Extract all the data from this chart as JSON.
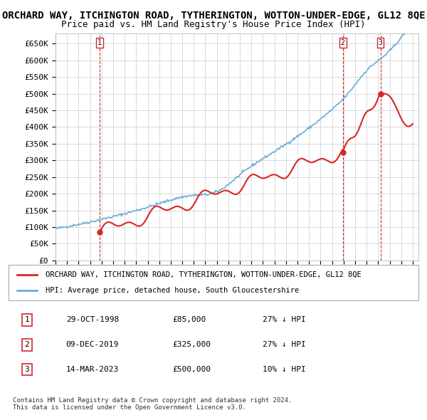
{
  "title": "ORCHARD WAY, ITCHINGTON ROAD, TYTHERINGTON, WOTTON-UNDER-EDGE, GL12 8QE",
  "subtitle": "Price paid vs. HM Land Registry's House Price Index (HPI)",
  "ylabel_ticks": [
    "£0",
    "£50K",
    "£100K",
    "£150K",
    "£200K",
    "£250K",
    "£300K",
    "£350K",
    "£400K",
    "£450K",
    "£500K",
    "£550K",
    "£600K",
    "£650K"
  ],
  "ytick_values": [
    0,
    50000,
    100000,
    150000,
    200000,
    250000,
    300000,
    350000,
    400000,
    450000,
    500000,
    550000,
    600000,
    650000
  ],
  "ylim": [
    0,
    680000
  ],
  "xlim_start": 1995.0,
  "xlim_end": 2026.5,
  "hpi_color": "#6baed6",
  "price_color": "#d62728",
  "sale_marker_color": "#d62728",
  "dashed_vline_color": "#d62728",
  "background_color": "#ffffff",
  "grid_color": "#cccccc",
  "legend_label_red": "ORCHARD WAY, ITCHINGTON ROAD, TYTHERINGTON, WOTTON-UNDER-EDGE, GL12 8QE",
  "legend_label_blue": "HPI: Average price, detached house, South Gloucestershire",
  "sales": [
    {
      "date_label": "1",
      "date": 1998.83,
      "price": 85000,
      "vline_label": "1"
    },
    {
      "date_label": "2",
      "date": 2019.93,
      "price": 325000,
      "vline_label": "2"
    },
    {
      "date_label": "3",
      "date": 2023.2,
      "price": 500000,
      "vline_label": "3"
    }
  ],
  "table_data": [
    [
      "1",
      "29-OCT-1998",
      "£85,000",
      "27% ↓ HPI"
    ],
    [
      "2",
      "09-DEC-2019",
      "£325,000",
      "27% ↓ HPI"
    ],
    [
      "3",
      "14-MAR-2023",
      "£500,000",
      "10% ↓ HPI"
    ]
  ],
  "footer_text": "Contains HM Land Registry data © Crown copyright and database right 2024.\nThis data is licensed under the Open Government Licence v3.0.",
  "title_fontsize": 10,
  "subtitle_fontsize": 9,
  "tick_fontsize": 8,
  "legend_fontsize": 8,
  "table_fontsize": 8
}
